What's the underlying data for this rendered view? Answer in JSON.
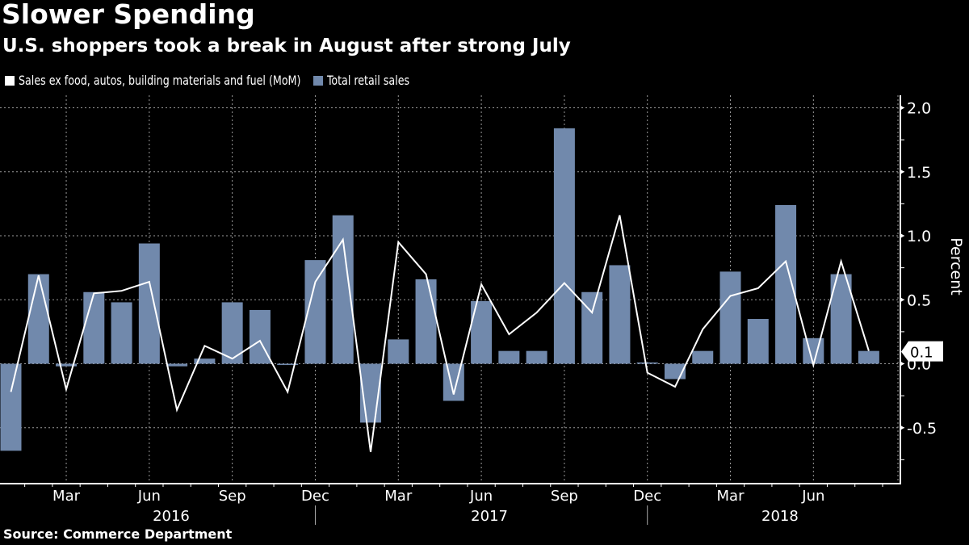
{
  "header": {
    "title": "Slower Spending",
    "subtitle": "U.S. shoppers took a break in August after strong July"
  },
  "legend": [
    {
      "label": "Sales ex food, autos, building materials and fuel (MoM)",
      "color": "#ffffff"
    },
    {
      "label": "Total retail sales",
      "color": "#7189ac"
    }
  ],
  "footer": {
    "source": "Source: Commerce Department"
  },
  "chart_data": {
    "type": "bar",
    "title": "Slower Spending",
    "subtitle": "U.S. shoppers took a break in August after strong July",
    "xlabel": "",
    "ylabel": "Percent",
    "ylim": [
      -0.9,
      2.1
    ],
    "yticks": [
      2.0,
      1.5,
      1.0,
      0.5,
      0.0,
      -0.5
    ],
    "ytick_labels": [
      "2.0",
      "1.5",
      "1.0",
      "0.5",
      "0.0",
      "-0.5"
    ],
    "grid": true,
    "legend_position": "top-left",
    "categories": [
      "Jan 2016",
      "Feb 2016",
      "Mar 2016",
      "Apr 2016",
      "May 2016",
      "Jun 2016",
      "Jul 2016",
      "Aug 2016",
      "Sep 2016",
      "Oct 2016",
      "Nov 2016",
      "Dec 2016",
      "Jan 2017",
      "Feb 2017",
      "Mar 2017",
      "Apr 2017",
      "May 2017",
      "Jun 2017",
      "Jul 2017",
      "Aug 2017",
      "Sep 2017",
      "Oct 2017",
      "Nov 2017",
      "Dec 2017",
      "Jan 2018",
      "Feb 2018",
      "Mar 2018",
      "Apr 2018",
      "May 2018",
      "Jun 2018",
      "Jul 2018",
      "Aug 2018"
    ],
    "x_tick_labels": [
      {
        "label": "Mar",
        "index": 2
      },
      {
        "label": "Jun",
        "index": 5
      },
      {
        "label": "Sep",
        "index": 8
      },
      {
        "label": "Dec",
        "index": 11
      },
      {
        "label": "Mar",
        "index": 14
      },
      {
        "label": "Jun",
        "index": 17
      },
      {
        "label": "Sep",
        "index": 20
      },
      {
        "label": "Dec",
        "index": 23
      },
      {
        "label": "Mar",
        "index": 26
      },
      {
        "label": "Jun",
        "index": 29
      }
    ],
    "year_labels": [
      {
        "label": "2016",
        "center_index": 5.5
      },
      {
        "label": "2017",
        "center_index": 17
      },
      {
        "label": "2018",
        "center_index": 27.5
      }
    ],
    "year_separators_index": [
      11,
      23
    ],
    "series": [
      {
        "name": "Total retail sales",
        "type": "bar",
        "color": "#7189ac",
        "values": [
          -0.68,
          0.7,
          -0.02,
          0.56,
          0.48,
          0.94,
          -0.02,
          0.04,
          0.48,
          0.42,
          -0.01,
          0.81,
          1.16,
          -0.46,
          0.19,
          0.66,
          -0.29,
          0.49,
          0.1,
          0.1,
          1.84,
          0.56,
          0.77,
          0.01,
          -0.12,
          0.1,
          0.72,
          0.35,
          1.24,
          0.2,
          0.7,
          0.1
        ]
      },
      {
        "name": "Sales ex food, autos, building materials and fuel (MoM)",
        "type": "line",
        "color": "#ffffff",
        "values": [
          -0.22,
          0.69,
          -0.2,
          0.55,
          0.57,
          0.64,
          -0.36,
          0.14,
          0.04,
          0.18,
          -0.22,
          0.64,
          0.97,
          -0.69,
          0.95,
          0.7,
          -0.24,
          0.62,
          0.23,
          0.4,
          0.63,
          0.4,
          1.16,
          -0.07,
          -0.18,
          0.27,
          0.53,
          0.59,
          0.8,
          -0.01,
          0.8,
          0.1
        ]
      }
    ],
    "annotations": [
      {
        "type": "last-value-callout",
        "series": "Total retail sales",
        "label": "0.1"
      }
    ]
  }
}
